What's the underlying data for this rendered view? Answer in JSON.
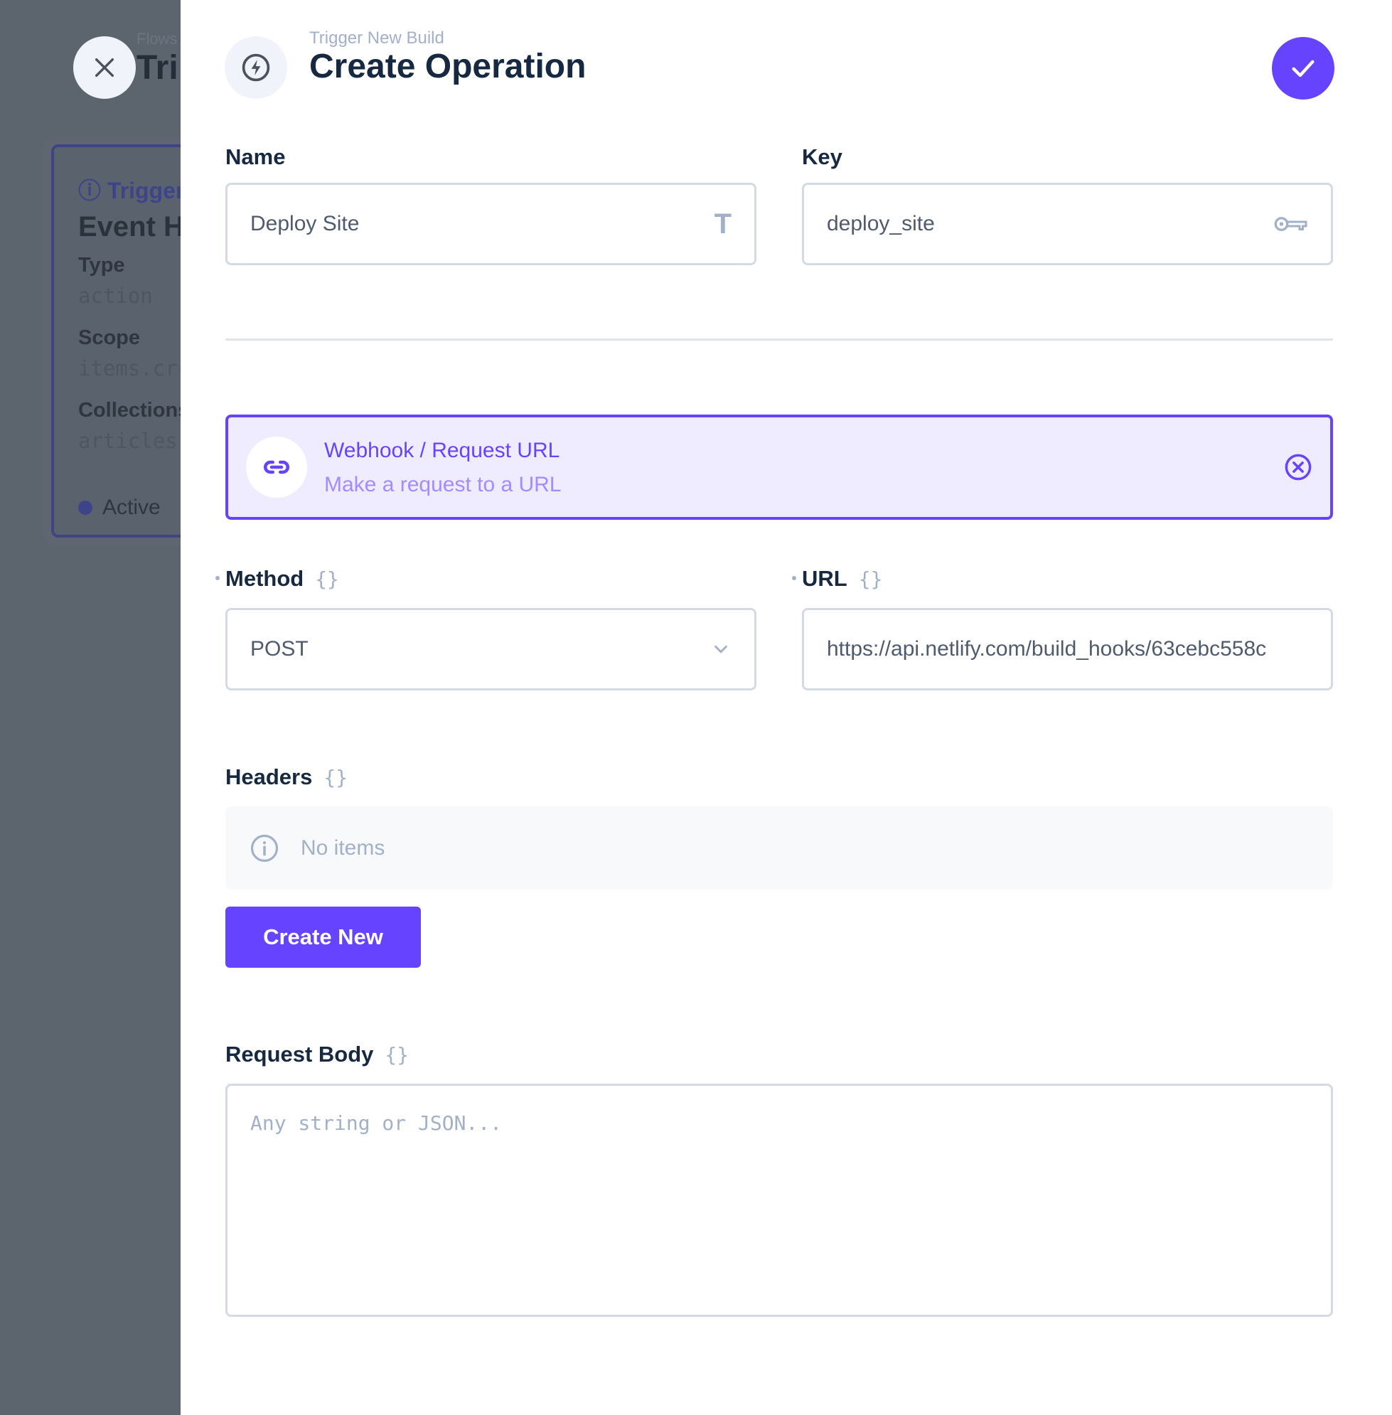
{
  "background": {
    "breadcrumb": "Flows",
    "title": "Tri",
    "card": {
      "trigger_label": "Trigger",
      "title": "Event H",
      "fields": [
        {
          "label": "Type",
          "value": "action"
        },
        {
          "label": "Scope",
          "value": "items.cr"
        },
        {
          "label": "Collections",
          "value": "articles"
        }
      ],
      "status": "Active"
    }
  },
  "header": {
    "subtitle": "Trigger New Build",
    "title": "Create Operation",
    "icon": "bolt-icon"
  },
  "form": {
    "name": {
      "label": "Name",
      "value": "Deploy Site"
    },
    "key": {
      "label": "Key",
      "value": "deploy_site"
    },
    "operation": {
      "title": "Webhook / Request URL",
      "description": "Make a request to a URL"
    },
    "method": {
      "label": "Method",
      "value": "POST"
    },
    "url": {
      "label": "URL",
      "value": "https://api.netlify.com/build_hooks/63cebc558c"
    },
    "headers": {
      "label": "Headers",
      "empty_text": "No items",
      "create_label": "Create New"
    },
    "body": {
      "label": "Request Body",
      "placeholder": "Any string or JSON..."
    }
  },
  "colors": {
    "accent": "#6644ff",
    "accent_bg": "#f0ecff",
    "text": "#172940",
    "muted": "#a2b0c8"
  }
}
